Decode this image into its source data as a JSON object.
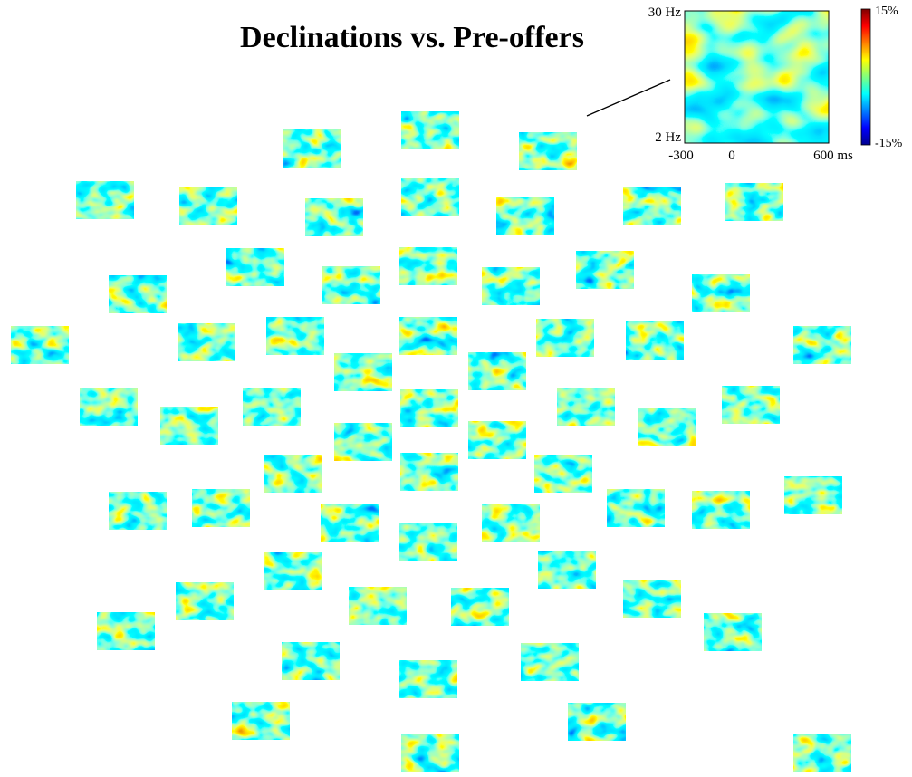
{
  "title": "Declinations vs. Pre-offers",
  "inset": {
    "y_top": "30 Hz",
    "y_bottom": "2 Hz",
    "x_labels": [
      "-300",
      "0",
      "600 ms"
    ]
  },
  "colorbar": {
    "max": "15%",
    "min": "-15%"
  }
}
